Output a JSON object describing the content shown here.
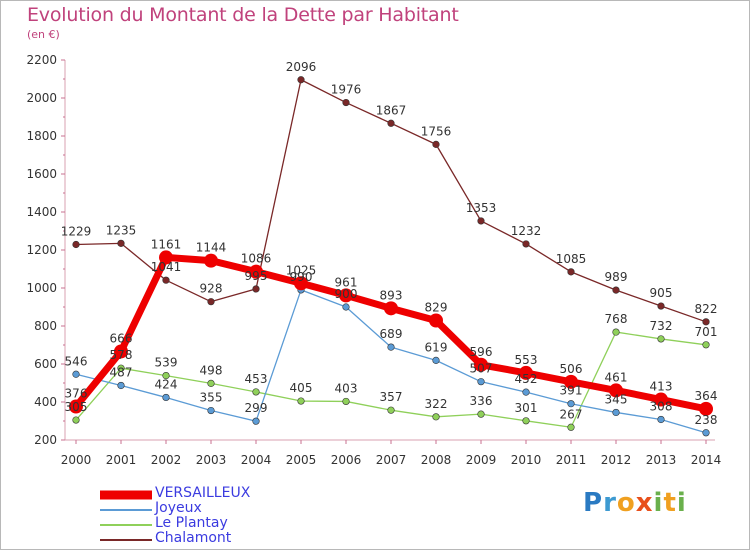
{
  "title": "Evolution du Montant de la Dette par Habitant",
  "subtitle": "(en €)",
  "logo": "Proxiti",
  "chart_data": {
    "type": "line",
    "x": [
      "2000",
      "2001",
      "2002",
      "2003",
      "2004",
      "2005",
      "2006",
      "2007",
      "2008",
      "2009",
      "2010",
      "2011",
      "2012",
      "2013",
      "2014"
    ],
    "ylim": [
      200,
      2200
    ],
    "yticks": [
      200,
      400,
      600,
      800,
      1000,
      1200,
      1400,
      1600,
      1800,
      2000,
      2200
    ],
    "grid": false,
    "legend_position": "bottom-left",
    "series": [
      {
        "name": "VERSAILLEUX",
        "color": "#ee0000",
        "values": [
          376,
          666,
          1161,
          1144,
          1086,
          1025,
          961,
          893,
          829,
          596,
          553,
          506,
          461,
          413,
          364
        ]
      },
      {
        "name": "Joyeux",
        "color": "#5b9bd5",
        "values": [
          546,
          487,
          424,
          355,
          299,
          990,
          900,
          689,
          619,
          507,
          452,
          391,
          345,
          308,
          238
        ]
      },
      {
        "name": "Le Plantay",
        "color": "#8fd05a",
        "values": [
          305,
          578,
          539,
          498,
          453,
          405,
          403,
          357,
          322,
          336,
          301,
          267,
          768,
          732,
          701
        ]
      },
      {
        "name": "Chalamont",
        "color": "#7a2828",
        "values": [
          1229,
          1235,
          1041,
          928,
          995,
          2096,
          1976,
          1867,
          1756,
          1353,
          1232,
          1085,
          989,
          905,
          822
        ]
      }
    ],
    "data_labels": [
      [
        376,
        666,
        1161,
        1144,
        1086,
        1025,
        961,
        893,
        829,
        596,
        553,
        506,
        461,
        413,
        364
      ],
      [
        546,
        487,
        424,
        355,
        299,
        990,
        900,
        689,
        619,
        507,
        452,
        391,
        345,
        308,
        238
      ],
      [
        305,
        578,
        539,
        498,
        453,
        405,
        403,
        357,
        322,
        336,
        301,
        267,
        768,
        732,
        701
      ],
      [
        1229,
        1235,
        1041,
        928,
        995,
        2096,
        1976,
        1867,
        1756,
        1353,
        1232,
        1085,
        989,
        905,
        822
      ]
    ]
  }
}
